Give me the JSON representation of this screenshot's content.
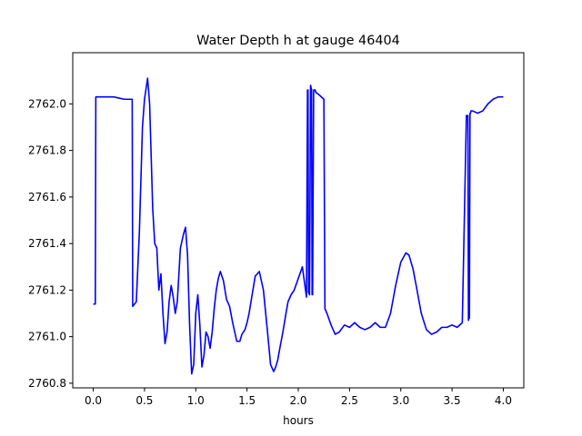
{
  "chart_data": {
    "type": "line",
    "title": "Water Depth h at gauge 46404",
    "xlabel": "hours",
    "ylabel": "",
    "xlim": [
      -0.2,
      4.2
    ],
    "ylim": [
      2760.78,
      2762.22
    ],
    "xticks": [
      0.0,
      0.5,
      1.0,
      1.5,
      2.0,
      2.5,
      3.0,
      3.5,
      4.0
    ],
    "xtick_labels": [
      "0.0",
      "0.5",
      "1.0",
      "1.5",
      "2.0",
      "2.5",
      "3.0",
      "3.5",
      "4.0"
    ],
    "yticks": [
      2760.8,
      2761.0,
      2761.2,
      2761.4,
      2761.6,
      2761.8,
      2762.0
    ],
    "ytick_labels": [
      "2760.8",
      "2761.0",
      "2761.2",
      "2761.4",
      "2761.6",
      "2761.8",
      "2762.0"
    ],
    "grid": false,
    "series": [
      {
        "color": "#0000ff",
        "x": [
          0.0,
          0.02,
          0.025,
          0.1,
          0.2,
          0.3,
          0.33,
          0.38,
          0.385,
          0.42,
          0.45,
          0.48,
          0.5,
          0.53,
          0.55,
          0.58,
          0.6,
          0.62,
          0.64,
          0.66,
          0.68,
          0.7,
          0.72,
          0.74,
          0.76,
          0.78,
          0.8,
          0.82,
          0.85,
          0.88,
          0.9,
          0.92,
          0.94,
          0.96,
          0.98,
          1.0,
          1.02,
          1.04,
          1.06,
          1.08,
          1.1,
          1.12,
          1.14,
          1.16,
          1.18,
          1.2,
          1.22,
          1.24,
          1.27,
          1.3,
          1.33,
          1.36,
          1.4,
          1.43,
          1.45,
          1.48,
          1.5,
          1.52,
          1.55,
          1.58,
          1.62,
          1.66,
          1.7,
          1.73,
          1.76,
          1.78,
          1.8,
          1.82,
          1.85,
          1.88,
          1.9,
          1.93,
          1.96,
          2.0,
          2.04,
          2.08,
          2.09,
          2.095,
          2.1,
          2.11,
          2.12,
          2.13,
          2.135,
          2.14,
          2.15,
          2.16,
          2.165,
          2.17,
          2.2,
          2.25,
          2.26,
          2.28,
          2.32,
          2.36,
          2.4,
          2.45,
          2.5,
          2.55,
          2.6,
          2.65,
          2.7,
          2.75,
          2.8,
          2.85,
          2.9,
          2.95,
          3.0,
          3.05,
          3.08,
          3.12,
          3.15,
          3.2,
          3.25,
          3.3,
          3.35,
          3.4,
          3.45,
          3.5,
          3.55,
          3.6,
          3.64,
          3.65,
          3.655,
          3.66,
          3.665,
          3.67,
          3.675,
          3.68,
          3.685,
          3.69,
          3.695,
          3.7,
          3.75,
          3.8,
          3.85,
          3.9,
          3.95,
          3.98,
          4.0
        ],
        "y": [
          2761.14,
          2761.14,
          2762.03,
          2762.03,
          2762.03,
          2762.02,
          2762.02,
          2762.02,
          2761.13,
          2761.15,
          2761.45,
          2761.9,
          2762.02,
          2762.11,
          2762.0,
          2761.55,
          2761.4,
          2761.38,
          2761.2,
          2761.27,
          2761.1,
          2760.97,
          2761.02,
          2761.15,
          2761.22,
          2761.17,
          2761.1,
          2761.15,
          2761.38,
          2761.44,
          2761.47,
          2761.35,
          2761.05,
          2760.84,
          2760.88,
          2761.1,
          2761.18,
          2761.05,
          2760.87,
          2760.92,
          2761.02,
          2761.0,
          2760.95,
          2761.02,
          2761.12,
          2761.2,
          2761.25,
          2761.28,
          2761.24,
          2761.16,
          2761.13,
          2761.06,
          2760.98,
          2760.98,
          2761.01,
          2761.03,
          2761.06,
          2761.1,
          2761.18,
          2761.26,
          2761.28,
          2761.2,
          2761.02,
          2760.88,
          2760.85,
          2760.87,
          2760.9,
          2760.95,
          2761.02,
          2761.1,
          2761.15,
          2761.18,
          2761.2,
          2761.25,
          2761.3,
          2761.17,
          2762.06,
          2762.06,
          2761.19,
          2761.18,
          2762.08,
          2762.06,
          2761.18,
          2761.18,
          2762.06,
          2762.06,
          2762.06,
          2762.05,
          2762.04,
          2762.02,
          2761.12,
          2761.1,
          2761.05,
          2761.01,
          2761.02,
          2761.05,
          2761.04,
          2761.06,
          2761.04,
          2761.03,
          2761.04,
          2761.06,
          2761.04,
          2761.04,
          2761.1,
          2761.22,
          2761.32,
          2761.36,
          2761.35,
          2761.29,
          2761.22,
          2761.1,
          2761.03,
          2761.01,
          2761.02,
          2761.04,
          2761.04,
          2761.05,
          2761.04,
          2761.06,
          2761.95,
          2761.95,
          2761.95,
          2761.07,
          2761.08,
          2761.08,
          2761.96,
          2761.96,
          2761.97,
          2761.97,
          2761.97,
          2761.97,
          2761.96,
          2761.97,
          2762.0,
          2762.02,
          2762.03,
          2762.03,
          2762.03
        ]
      }
    ]
  }
}
